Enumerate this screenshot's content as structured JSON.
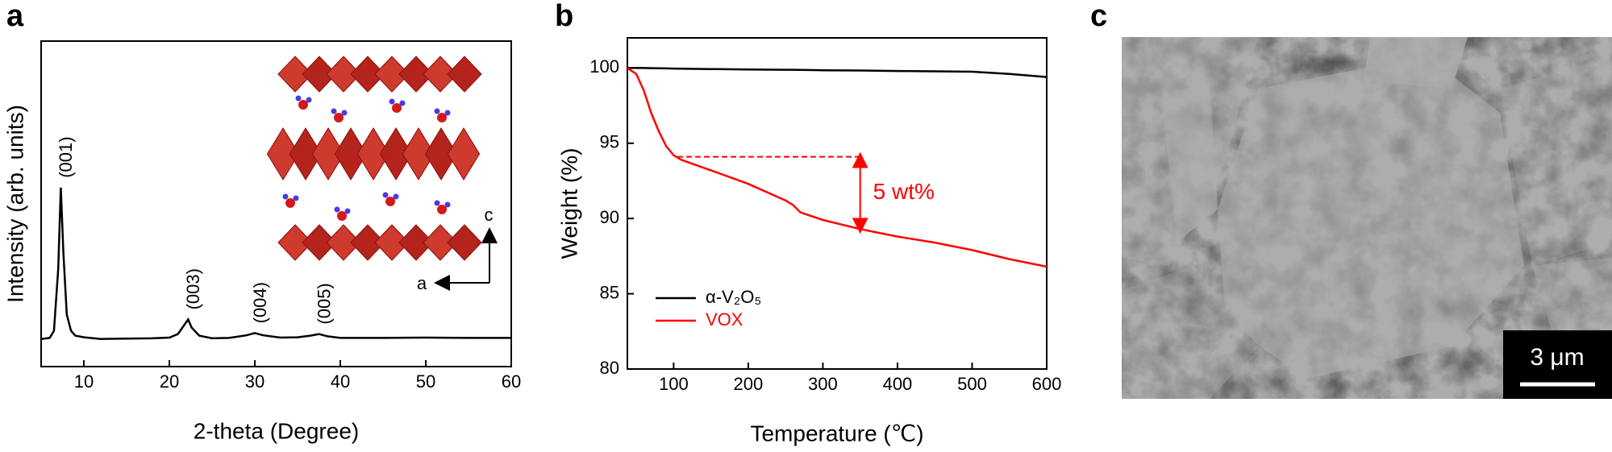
{
  "chart_data": [
    {
      "type": "line",
      "panel": "a",
      "xlabel": "2-theta (Degree)",
      "ylabel": "Intensity (arb. units)",
      "xlim": [
        5,
        60
      ],
      "xticks": [
        10,
        20,
        30,
        40,
        50,
        60
      ],
      "ylim": [
        0,
        100
      ],
      "x": [
        5,
        6,
        6.5,
        7,
        7.3,
        7.6,
        8,
        8.5,
        9,
        10,
        12,
        15,
        18,
        20,
        21,
        21.8,
        22.2,
        22.6,
        23.5,
        25,
        27,
        29,
        30,
        31,
        33,
        35,
        36.5,
        37.5,
        38.5,
        40,
        45,
        50,
        55,
        60
      ],
      "series": [
        {
          "color": "#000000",
          "values": [
            8.5,
            8.8,
            11,
            30,
            55,
            35,
            16,
            11,
            9.5,
            9,
            8.5,
            8.6,
            8.7,
            8.9,
            10,
            13,
            14.5,
            12,
            9.5,
            8.7,
            8.8,
            9.6,
            10.3,
            9.6,
            8.9,
            9,
            9.5,
            10,
            9.3,
            8.8,
            8.8,
            8.9,
            8.8,
            8.8
          ]
        }
      ],
      "peak_labels": [
        {
          "text": "(001)",
          "x": 7.3
        },
        {
          "text": "(003)",
          "x": 22.2
        },
        {
          "text": "(004)",
          "x": 30
        },
        {
          "text": "(005)",
          "x": 37.5
        }
      ],
      "inset_axes": [
        "c",
        "a"
      ]
    },
    {
      "type": "line",
      "panel": "b",
      "xlabel": "Temperature (℃)",
      "ylabel": "Weight (%)",
      "xlim": [
        38,
        600
      ],
      "xticks": [
        100,
        200,
        300,
        400,
        500,
        600
      ],
      "ylim": [
        80,
        102
      ],
      "yticks": [
        80,
        85,
        90,
        95,
        100
      ],
      "legend": "lower left",
      "x": [
        38,
        50,
        60,
        70,
        80,
        90,
        100,
        110,
        150,
        200,
        250,
        260,
        270,
        300,
        350,
        400,
        450,
        500,
        550,
        600
      ],
      "series": [
        {
          "name": "α-V₂O₅",
          "color": "#000000",
          "values": [
            100,
            100,
            100,
            99.99,
            99.98,
            99.97,
            99.96,
            99.95,
            99.93,
            99.9,
            99.88,
            99.88,
            99.87,
            99.85,
            99.83,
            99.8,
            99.78,
            99.75,
            99.6,
            99.4
          ]
        },
        {
          "name": "VOX",
          "color": "#ff0000",
          "values": [
            100,
            99.6,
            98.5,
            97,
            95.8,
            94.8,
            94.2,
            93.9,
            93.2,
            92.3,
            91.2,
            90.9,
            90.4,
            89.9,
            89.3,
            88.8,
            88.4,
            87.9,
            87.3,
            86.8
          ]
        }
      ],
      "annotation": {
        "text": "5 wt%",
        "x": 350,
        "x_start": 105,
        "from": 94.1,
        "to": 89.3,
        "color": "#ff0000"
      }
    }
  ],
  "panel_c": {
    "label": "c",
    "scale_bar": "3 μm"
  }
}
